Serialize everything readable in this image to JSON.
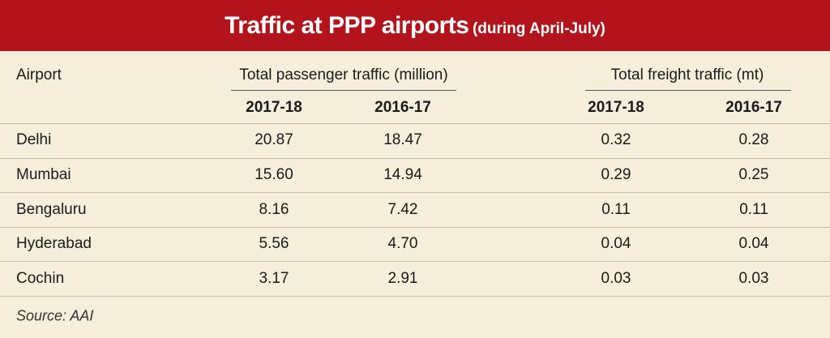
{
  "header": {
    "title": "Traffic at PPP airports",
    "subtitle": "(during April-July)"
  },
  "table": {
    "first_column_header": "Airport",
    "groups": [
      {
        "label": "Total passenger traffic (million)",
        "columns": [
          "2017-18",
          "2016-17"
        ]
      },
      {
        "label": "Total freight traffic (mt)",
        "columns": [
          "2017-18",
          "2016-17"
        ]
      }
    ],
    "rows": [
      [
        "Delhi",
        "20.87",
        "18.47",
        "0.32",
        "0.28"
      ],
      [
        "Mumbai",
        "15.60",
        "14.94",
        "0.29",
        "0.25"
      ],
      [
        "Bengaluru",
        "8.16",
        "7.42",
        "0.11",
        "0.11"
      ],
      [
        "Hyderabad",
        "5.56",
        "4.70",
        "0.04",
        "0.04"
      ],
      [
        "Cochin",
        "3.17",
        "2.91",
        "0.03",
        "0.03"
      ]
    ]
  },
  "source": "Source: AAI"
}
